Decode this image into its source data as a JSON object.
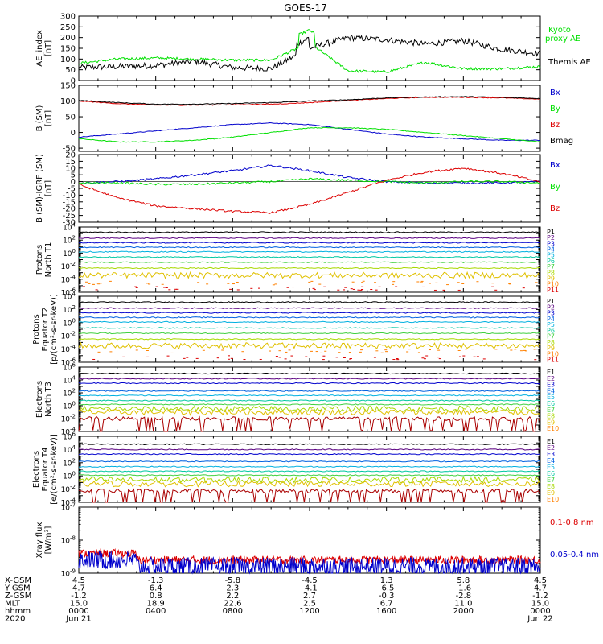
{
  "title": "GOES-17",
  "colors": {
    "black": "#000000",
    "green": "#00e000",
    "blue": "#0000cc",
    "red": "#dd0000",
    "darkred": "#aa0000",
    "ladder": [
      "#000000",
      "#5a0080",
      "#0000cc",
      "#0060e0",
      "#00b0e0",
      "#00c8a0",
      "#40d040",
      "#a8d800",
      "#e0c000",
      "#ff8000",
      "#dd0000",
      "#990000"
    ]
  },
  "chart_data": [
    {
      "type": "line",
      "panel": "ae_index",
      "ylabel": "AE_index [nT]",
      "ylim": [
        0,
        300
      ],
      "yticks": [
        0,
        50,
        100,
        150,
        200,
        250,
        300
      ],
      "x": [
        0,
        2,
        4,
        6,
        8,
        10,
        12,
        14,
        16,
        18,
        20,
        22,
        24
      ],
      "series": [
        {
          "name": "Themis AE",
          "color": "#000000",
          "values": [
            60,
            65,
            70,
            90,
            60,
            55,
            150,
            200,
            190,
            170,
            185,
            145,
            125
          ]
        },
        {
          "name": "Kyoto proxy AE",
          "color": "#00e000",
          "values": [
            80,
            100,
            105,
            100,
            95,
            95,
            175,
            45,
            40,
            85,
            55,
            55,
            65
          ]
        }
      ]
    },
    {
      "type": "line",
      "panel": "b_sm",
      "ylabel": "B (SM) [nT]",
      "ylim": [
        -60,
        150
      ],
      "yticks": [
        -50,
        0,
        50,
        100,
        150
      ],
      "x": [
        0,
        2,
        4,
        6,
        8,
        10,
        12,
        14,
        16,
        18,
        20,
        22,
        24
      ],
      "series": [
        {
          "name": "Bx",
          "color": "#0000cc",
          "values": [
            -15,
            -5,
            5,
            15,
            25,
            30,
            25,
            10,
            -5,
            -15,
            -20,
            -25,
            -25
          ]
        },
        {
          "name": "By",
          "color": "#00e000",
          "values": [
            -20,
            -30,
            -30,
            -25,
            -15,
            0,
            15,
            15,
            10,
            0,
            -10,
            -20,
            -30
          ]
        },
        {
          "name": "Bz",
          "color": "#dd0000",
          "values": [
            100,
            92,
            87,
            87,
            88,
            90,
            95,
            102,
            108,
            112,
            112,
            110,
            106
          ]
        },
        {
          "name": "Bmag",
          "color": "#000000",
          "values": [
            102,
            95,
            90,
            90,
            92,
            95,
            100,
            104,
            110,
            113,
            114,
            112,
            108
          ]
        }
      ]
    },
    {
      "type": "line",
      "panel": "b_sm_minus_igrf",
      "ylabel": "B (SM)-IGRF (SM) [nT]",
      "ylim": [
        -30,
        20
      ],
      "yticks": [
        -30,
        -25,
        -20,
        -15,
        -10,
        -5,
        0,
        5,
        10,
        15,
        20
      ],
      "x": [
        0,
        2,
        4,
        6,
        8,
        10,
        12,
        14,
        16,
        18,
        20,
        22,
        24
      ],
      "series": [
        {
          "name": "Bx",
          "color": "#0000cc",
          "values": [
            -1,
            0,
            2,
            5,
            8,
            12,
            8,
            3,
            0,
            -1,
            -1,
            -1,
            0
          ]
        },
        {
          "name": "By",
          "color": "#00e000",
          "values": [
            -1,
            -1,
            -2,
            -2,
            -1,
            0,
            2,
            1,
            0,
            -1,
            0,
            0,
            -1
          ]
        },
        {
          "name": "Bz",
          "color": "#dd0000",
          "values": [
            -2,
            -12,
            -18,
            -20,
            -22,
            -23,
            -17,
            -8,
            1,
            7,
            10,
            6,
            0
          ]
        }
      ]
    },
    {
      "type": "line",
      "panel": "protons_north_t1",
      "ylabel": "Protons North T1",
      "ylog": true,
      "ylim": [
        -6,
        4
      ],
      "yticks": [
        4,
        2,
        0,
        -2,
        -4,
        -6
      ],
      "series": [
        {
          "name": "P1",
          "level": 3.2
        },
        {
          "name": "P2",
          "level": 2.3
        },
        {
          "name": "P3",
          "level": 1.6
        },
        {
          "name": "P4",
          "level": 0.9
        },
        {
          "name": "P5",
          "level": 0.2
        },
        {
          "name": "P6",
          "level": -0.6
        },
        {
          "name": "P7",
          "level": -1.4
        },
        {
          "name": "P8",
          "level": -2.3
        },
        {
          "name": "P9",
          "level": -3.4
        },
        {
          "name": "P10",
          "level": -4.6
        },
        {
          "name": "P11",
          "level": -5.4
        }
      ]
    },
    {
      "type": "line",
      "panel": "protons_equator_t2",
      "ylabel": "Protons Equator T2 [p/(cm²-s-sr-keV)]",
      "ylog": true,
      "ylim": [
        -6,
        4
      ],
      "yticks": [
        4,
        2,
        0,
        -2,
        -4,
        -6
      ],
      "series": [
        {
          "name": "P1",
          "level": 3.1
        },
        {
          "name": "P2",
          "level": 2.2
        },
        {
          "name": "P3",
          "level": 1.5
        },
        {
          "name": "P4",
          "level": 0.8
        },
        {
          "name": "P5",
          "level": 0.1
        },
        {
          "name": "P6",
          "level": -0.8
        },
        {
          "name": "P7",
          "level": -1.6
        },
        {
          "name": "P8",
          "level": -2.5
        },
        {
          "name": "P9",
          "level": -3.5
        },
        {
          "name": "P10",
          "level": -4.3
        },
        {
          "name": "P11",
          "level": -5.3
        }
      ]
    },
    {
      "type": "line",
      "panel": "electrons_north_t3",
      "ylabel": "Electrons North T3",
      "ylog": true,
      "ylim": [
        -4,
        6
      ],
      "yticks": [
        6,
        4,
        2,
        0,
        -2,
        -4
      ],
      "series": [
        {
          "name": "E1",
          "level": 5.0
        },
        {
          "name": "E2",
          "level": 4.2
        },
        {
          "name": "E3",
          "level": 3.5
        },
        {
          "name": "E4",
          "level": 2.3
        },
        {
          "name": "E5",
          "level": 1.6
        },
        {
          "name": "E6",
          "level": 0.8
        },
        {
          "name": "E7",
          "level": 0.2
        },
        {
          "name": "E8",
          "level": -0.5
        },
        {
          "name": "E9",
          "level": -1.0
        },
        {
          "name": "E10",
          "level": -2.0
        }
      ]
    },
    {
      "type": "line",
      "panel": "electrons_equator_t4",
      "ylabel": "Electrons Equator T4 [e/(cm²-s-sr-keV)]",
      "ylog": true,
      "ylim": [
        -4,
        6
      ],
      "yticks": [
        6,
        4,
        2,
        0,
        -2,
        -4
      ],
      "series": [
        {
          "name": "E1",
          "level": 4.8
        },
        {
          "name": "E2",
          "level": 4.0
        },
        {
          "name": "E3",
          "level": 3.3
        },
        {
          "name": "E4",
          "level": 2.2
        },
        {
          "name": "E5",
          "level": 1.4
        },
        {
          "name": "E6",
          "level": 0.7
        },
        {
          "name": "E7",
          "level": 0.1
        },
        {
          "name": "E8",
          "level": -0.6
        },
        {
          "name": "E9",
          "level": -1.2
        },
        {
          "name": "E10",
          "level": -2.3
        }
      ]
    },
    {
      "type": "line",
      "panel": "xray_flux",
      "ylabel": "Xray flux [W/m²]",
      "ylog": true,
      "ylim": [
        -9,
        -7
      ],
      "yticks": [
        -7,
        -8,
        -9
      ],
      "series": [
        {
          "name": "0.1-0.8 nm",
          "color": "#dd0000",
          "level": -8.6
        },
        {
          "name": "0.05-0.4 nm",
          "color": "#0000cc",
          "level": -8.8
        }
      ]
    }
  ],
  "panel_titles": {
    "ae": [
      "AE_index",
      "[nT]"
    ],
    "bsm": [
      "B (SM)",
      "[nT]"
    ],
    "bigrf": [
      "B (SM)-IGRF (SM)",
      "[nT]"
    ],
    "p1": [
      "Protons",
      "North T1"
    ],
    "p2": [
      "Protons",
      "Equator T2",
      "[p/(cm²-s-sr-keV)]"
    ],
    "e1": [
      "Electrons",
      "North T3"
    ],
    "e2": [
      "Electrons",
      "Equator T4",
      "[e/(cm²-s-sr-keV)]"
    ],
    "xr": [
      "Xray flux",
      "[W/m²]"
    ]
  },
  "legends": {
    "ae": [
      "Kyoto",
      "proxy AE",
      "Themis AE"
    ],
    "xray": [
      "0.1-0.8 nm",
      "0.05-0.4 nm"
    ]
  },
  "axis_table": {
    "row_labels": [
      "X-GSM",
      "Y-GSM",
      "Z-GSM",
      "MLT",
      "hhmm",
      "2020"
    ],
    "columns": [
      [
        "4.5",
        "4.7",
        "-1.2",
        "15.0",
        "0000",
        "Jun 21"
      ],
      [
        "-1.3",
        "6.4",
        "0.8",
        "18.9",
        "0400",
        ""
      ],
      [
        "-5.8",
        "2.3",
        "2.2",
        "22.6",
        "0800",
        ""
      ],
      [
        "-4.5",
        "-4.1",
        "2.7",
        "2.5",
        "1200",
        ""
      ],
      [
        "1.3",
        "-6.5",
        "-0.3",
        "6.7",
        "1600",
        ""
      ],
      [
        "5.8",
        "-1.6",
        "-2.8",
        "11.0",
        "2000",
        ""
      ],
      [
        "4.5",
        "4.7",
        "-1.2",
        "15.0",
        "0000",
        "Jun 22"
      ]
    ]
  }
}
